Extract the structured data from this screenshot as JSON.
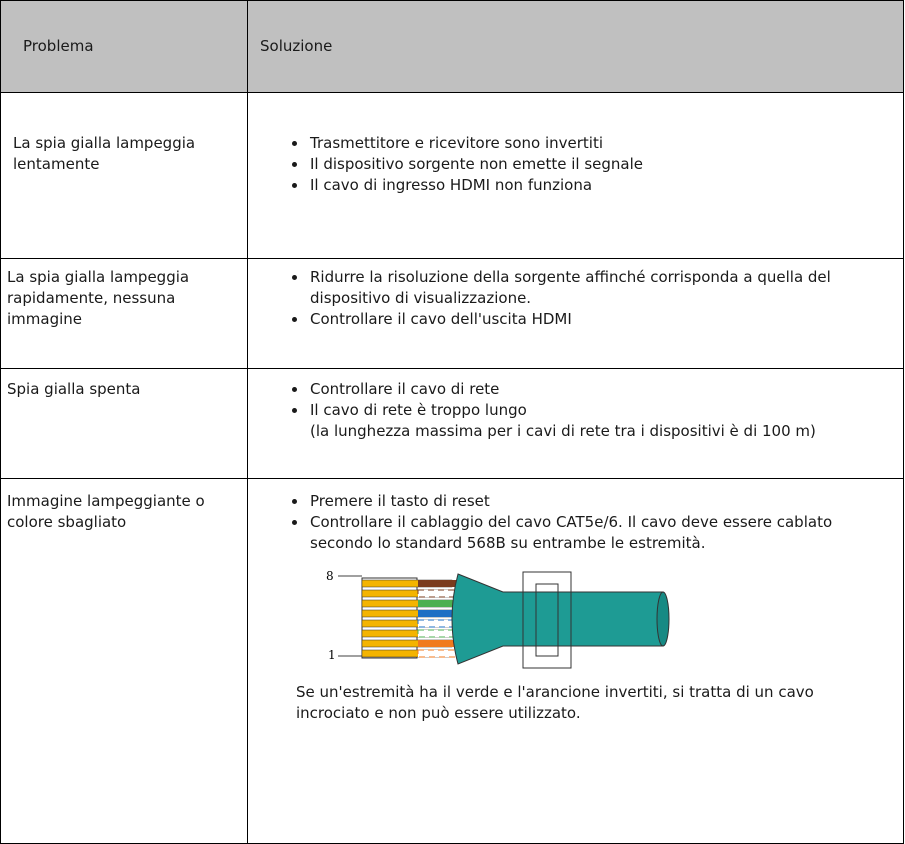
{
  "table": {
    "header": [
      "Problema",
      "Soluzione"
    ],
    "rows": [
      {
        "problem": "La spia gialla lampeggia lentamente",
        "solutions": [
          "Trasmettitore e ricevitore sono invertiti",
          "Il dispositivo sorgente non emette il segnale",
          "Il cavo di ingresso HDMI non funziona"
        ]
      },
      {
        "problem": "La spia gialla lampeggia rapidamente, nessuna immagine",
        "solutions": [
          "Ridurre la risoluzione della sorgente affinché corrisponda a quella del dispositivo di visualizzazione.",
          "Controllare il cavo dell'uscita HDMI"
        ]
      },
      {
        "problem": "Spia gialla spenta",
        "solutions": [
          "Controllare il cavo di rete",
          "Il cavo di rete è troppo lungo"
        ],
        "note": "(la lunghezza massima per i cavi di rete tra i dispositivi è di 100 m)"
      },
      {
        "problem": "Immagine lampeggiante o colore sbagliato",
        "solutions": [
          "Premere il tasto di reset",
          "Controllare il cablaggio del cavo CAT5e/6. Il cavo deve essere cablato secondo lo standard 568B su entrambe le estremità."
        ],
        "figure_labels": [
          "8",
          "1"
        ],
        "footer": "Se un'estremità ha il verde e l'arancione invertiti, si tratta di un cavo incrociato e non può essere utilizzato."
      }
    ]
  }
}
